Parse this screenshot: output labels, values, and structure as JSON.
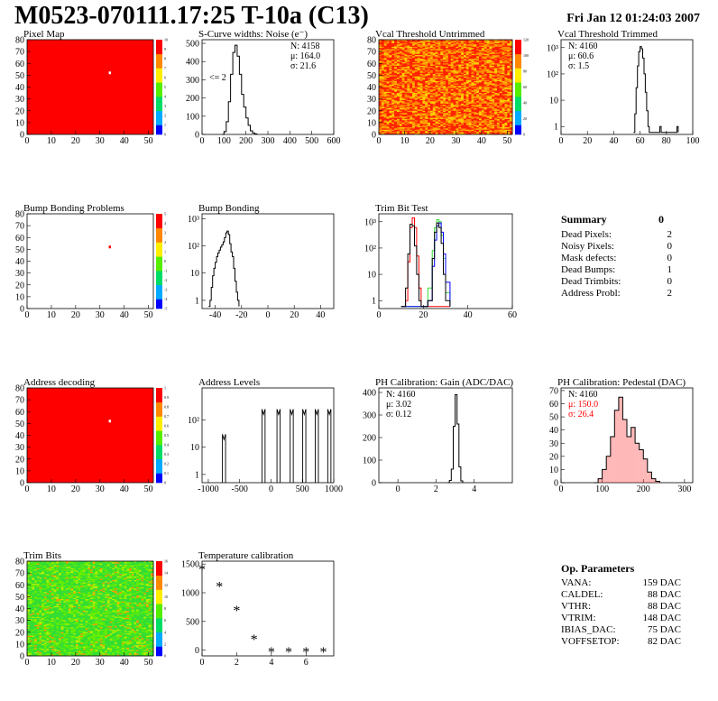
{
  "header": {
    "title": "M0523-070111.17:25 T-10a (C13)",
    "date": "Fri Jan 12 01:24:03 2007"
  },
  "colors": {
    "map_red": "#ff0000",
    "trim_green": "#33dd33",
    "trim_blue": "#0000ff",
    "trim_red": "#ff0000",
    "pedestal_fill": "#ff3333",
    "stats_red": "#ff0000"
  },
  "summary": {
    "title": "Summary",
    "value": "0",
    "rows": [
      {
        "label": "Dead Pixels:",
        "value": "2"
      },
      {
        "label": "Noisy Pixels:",
        "value": "0"
      },
      {
        "label": "Mask defects:",
        "value": "0"
      },
      {
        "label": "Dead Bumps:",
        "value": "1"
      },
      {
        "label": "Dead Trimbits:",
        "value": "0"
      },
      {
        "label": "Address Probl:",
        "value": "2"
      }
    ]
  },
  "op_params": {
    "title": "Op. Parameters",
    "rows": [
      {
        "label": "VANA:",
        "value": "159 DAC"
      },
      {
        "label": "CALDEL:",
        "value": "88 DAC"
      },
      {
        "label": "VTHR:",
        "value": "88 DAC"
      },
      {
        "label": "VTRIM:",
        "value": "148 DAC"
      },
      {
        "label": "IBIAS_DAC:",
        "value": "75 DAC"
      },
      {
        "label": "VOFFSETOP:",
        "value": "82 DAC"
      }
    ]
  },
  "chart_data": [
    {
      "id": "pixel_map",
      "type": "heatmap",
      "title": "Pixel Map",
      "style": "uniform",
      "xlim": [
        0,
        52
      ],
      "ylim": [
        0,
        80
      ],
      "xticks": [
        "0",
        "10",
        "20",
        "30",
        "40",
        "50"
      ],
      "yticks": [
        "0",
        "10",
        "20",
        "30",
        "40",
        "50",
        "60",
        "70",
        "80"
      ],
      "palette_ticks": [
        "0",
        "1",
        "2",
        "3",
        "4",
        "5",
        "6",
        "7",
        "8",
        "9",
        "10"
      ],
      "highlight": [
        34,
        52
      ]
    },
    {
      "id": "scurve",
      "type": "line",
      "title": "S-Curve widths: Noise (e⁻)",
      "xlim": [
        0,
        600
      ],
      "ylim": [
        0,
        520
      ],
      "xticks": [
        "0",
        "100",
        "200",
        "300",
        "400",
        "500",
        "600"
      ],
      "yticks": [
        "0",
        "100",
        "200",
        "300",
        "400",
        "500"
      ],
      "stats": [
        "N: 4158",
        "μ: 164.0",
        "σ: 21.6"
      ],
      "annotation": "<= 2",
      "x": [
        90,
        100,
        110,
        120,
        130,
        140,
        150,
        160,
        170,
        180,
        190,
        200,
        210,
        220,
        230,
        240,
        250
      ],
      "y": [
        0,
        15,
        70,
        180,
        330,
        450,
        490,
        430,
        330,
        220,
        150,
        90,
        50,
        20,
        8,
        3,
        0
      ]
    },
    {
      "id": "vcal_untrimmed",
      "type": "heatmap",
      "title": "Vcal Threshold Untrimmed",
      "style": "noise_hot",
      "xlim": [
        0,
        52
      ],
      "ylim": [
        0,
        80
      ],
      "xticks": [
        "0",
        "10",
        "20",
        "30",
        "40",
        "50"
      ],
      "yticks": [
        "0",
        "10",
        "20",
        "30",
        "40",
        "50",
        "60",
        "70",
        "80"
      ],
      "palette_ticks": [
        "0",
        "20",
        "40",
        "60",
        "80",
        "100",
        "120"
      ]
    },
    {
      "id": "vcal_trimmed",
      "type": "line",
      "title": "Vcal Threshold Trimmed",
      "xlim": [
        0,
        100
      ],
      "ylog": true,
      "ylim": [
        0.5,
        2000
      ],
      "xticks": [
        "0",
        "20",
        "40",
        "60",
        "80",
        "100"
      ],
      "yticks": [
        "1",
        "10",
        "10²",
        "10³"
      ],
      "ytick_vals": [
        1,
        10,
        100,
        1000
      ],
      "stats": [
        "N: 4160",
        "μ: 60.6",
        "σ:  1.5"
      ],
      "x": [
        55,
        56,
        57,
        58,
        59,
        60,
        61,
        62,
        63,
        64,
        65,
        66,
        67,
        75,
        76,
        88,
        89
      ],
      "y": [
        0.6,
        3,
        30,
        200,
        700,
        1100,
        900,
        400,
        100,
        20,
        4,
        1,
        0.6,
        1,
        0.6,
        1,
        0.6
      ]
    },
    {
      "id": "bump_map",
      "type": "heatmap",
      "title": "Bump Bonding Problems",
      "style": "empty",
      "xlim": [
        0,
        52
      ],
      "ylim": [
        0,
        80
      ],
      "xticks": [
        "0",
        "10",
        "20",
        "30",
        "40",
        "50"
      ],
      "yticks": [
        "0",
        "10",
        "20",
        "30",
        "40",
        "50",
        "60",
        "70",
        "80"
      ],
      "palette_ticks": [
        "-5",
        "-4",
        "-3",
        "-2",
        "-1",
        "0",
        "1",
        "2",
        "3",
        "4",
        "5"
      ],
      "highlight": [
        34,
        52
      ]
    },
    {
      "id": "bump_bonding",
      "type": "line",
      "title": "Bump Bonding",
      "xlim": [
        -50,
        50
      ],
      "ylog": true,
      "ylim": [
        0.5,
        1500
      ],
      "xticks": [
        "-40",
        "-20",
        "0",
        "20",
        "40"
      ],
      "yticks": [
        "1",
        "10",
        "10²",
        "10³"
      ],
      "ytick_vals": [
        1,
        10,
        100,
        1000
      ],
      "x": [
        -45,
        -44,
        -43,
        -42,
        -41,
        -40,
        -39,
        -38,
        -37,
        -36,
        -35,
        -34,
        -33,
        -32,
        -31,
        -30,
        -29,
        -28,
        -27,
        -26,
        -25,
        -24,
        -23,
        -22
      ],
      "y": [
        0.6,
        1,
        3,
        8,
        15,
        25,
        40,
        55,
        70,
        90,
        110,
        140,
        200,
        300,
        350,
        260,
        120,
        60,
        40,
        15,
        5,
        2,
        1,
        0.6
      ]
    },
    {
      "id": "trim_bit_test",
      "type": "line",
      "title": "Trim Bit Test",
      "xlim": [
        0,
        60
      ],
      "ylog": true,
      "ylim": [
        0.5,
        2000
      ],
      "xticks": [
        "0",
        "20",
        "40",
        "60"
      ],
      "yticks": [
        "1",
        "10",
        "10²",
        "10³"
      ],
      "ytick_vals": [
        1,
        10,
        100,
        1000
      ],
      "x": [
        10,
        12,
        13,
        14,
        15,
        16,
        17,
        18,
        19,
        20,
        22,
        24,
        25,
        26,
        27,
        28,
        29,
        30,
        32
      ],
      "series": [
        {
          "color": "#ff0000",
          "y": [
            0.6,
            1,
            30,
            600,
            1400,
            600,
            50,
            3,
            0.6,
            0.6,
            0.6,
            0.6,
            0.6,
            0.6,
            0.6,
            0.6,
            0.6,
            0.6,
            0.6
          ]
        },
        {
          "color": "#33dd33",
          "y": [
            0.6,
            0.6,
            0.6,
            0.6,
            0.6,
            0.6,
            0.6,
            0.6,
            0.6,
            0.6,
            3,
            80,
            600,
            1200,
            1000,
            300,
            40,
            2,
            0.6
          ]
        },
        {
          "color": "#0000ff",
          "y": [
            0.6,
            0.6,
            0.6,
            0.6,
            0.6,
            0.6,
            0.6,
            0.6,
            0.6,
            0.6,
            1,
            20,
            200,
            700,
            900,
            400,
            60,
            5,
            0.6
          ]
        },
        {
          "color": "#000000",
          "y": [
            0.6,
            3,
            60,
            800,
            700,
            120,
            10,
            1,
            0.6,
            0.6,
            1,
            40,
            400,
            900,
            600,
            150,
            10,
            1,
            0.6
          ]
        }
      ]
    },
    {
      "id": "address_decoding",
      "type": "heatmap",
      "title": "Address decoding",
      "style": "uniform",
      "xlim": [
        0,
        52
      ],
      "ylim": [
        0,
        80
      ],
      "xticks": [
        "0",
        "10",
        "20",
        "30",
        "40",
        "50"
      ],
      "yticks": [
        "0",
        "10",
        "20",
        "30",
        "40",
        "50",
        "60",
        "70",
        "80"
      ],
      "palette_ticks": [
        "0",
        "0.1",
        "0.2",
        "0.3",
        "0.4",
        "0.5",
        "0.6",
        "0.7",
        "0.8",
        "0.9",
        "1"
      ],
      "highlight": [
        34,
        52
      ]
    },
    {
      "id": "address_levels",
      "type": "line",
      "title": "Address Levels",
      "xlim": [
        -1100,
        1000
      ],
      "ylog": true,
      "ylim": [
        0.5,
        1500
      ],
      "xticks": [
        "-1000",
        "-500",
        "0",
        "500",
        "1000"
      ],
      "yticks": [
        "1",
        "10",
        "10²"
      ],
      "ytick_vals": [
        1,
        10,
        100
      ],
      "peaks": [
        -750,
        -120,
        120,
        330,
        530,
        730,
        930
      ],
      "peak_heights": [
        30,
        250,
        250,
        250,
        250,
        250,
        250
      ]
    },
    {
      "id": "ph_gain",
      "type": "line",
      "title": "PH Calibration: Gain (ADC/DAC)",
      "xlim": [
        -1,
        6
      ],
      "ylim": [
        0,
        420
      ],
      "xticks": [
        "0",
        "2",
        "4"
      ],
      "yticks": [
        "0",
        "100",
        "200",
        "300",
        "400"
      ],
      "stats": [
        "N: 4160",
        "μ: 3.02",
        "σ: 0.12"
      ],
      "x": [
        2.6,
        2.7,
        2.8,
        2.9,
        3.0,
        3.1,
        3.2,
        3.3,
        3.4
      ],
      "y": [
        0,
        10,
        60,
        250,
        390,
        260,
        70,
        8,
        0
      ]
    },
    {
      "id": "ph_pedestal",
      "type": "line",
      "title": "PH Calibration: Pedestal (DAC)",
      "xlim": [
        0,
        320
      ],
      "ylim": [
        0,
        72
      ],
      "xticks": [
        "0",
        "100",
        "200",
        "300"
      ],
      "yticks": [
        "0",
        "10",
        "20",
        "30",
        "40",
        "50",
        "60",
        "70"
      ],
      "stats": [
        "N: 4160",
        "μ: 150.0",
        "σ: 26.4"
      ],
      "stats_red_from": 1,
      "x": [
        80,
        90,
        100,
        110,
        120,
        130,
        140,
        150,
        160,
        170,
        180,
        190,
        200,
        210,
        220,
        230,
        240
      ],
      "y": [
        0,
        3,
        10,
        20,
        35,
        55,
        65,
        48,
        35,
        42,
        30,
        25,
        18,
        8,
        3,
        1,
        0
      ]
    },
    {
      "id": "trim_bits",
      "type": "heatmap",
      "title": "Trim Bits",
      "style": "noise_green",
      "xlim": [
        0,
        52
      ],
      "ylim": [
        0,
        80
      ],
      "xticks": [
        "0",
        "10",
        "20",
        "30",
        "40",
        "50"
      ],
      "yticks": [
        "0",
        "10",
        "20",
        "30",
        "40",
        "50",
        "60",
        "70",
        "80"
      ],
      "palette_ticks": [
        "0",
        "2",
        "4",
        "6",
        "8",
        "10",
        "12",
        "14",
        "16"
      ]
    },
    {
      "id": "temperature",
      "type": "scatter",
      "title": "Temperature calibration",
      "xlim": [
        0,
        7.6
      ],
      "ylim": [
        -100,
        1550
      ],
      "xticks": [
        "0",
        "2",
        "4",
        "6"
      ],
      "yticks": [
        "0",
        "500",
        "1000",
        "1500"
      ],
      "x": [
        0,
        1,
        2,
        3,
        4,
        5,
        6,
        7
      ],
      "y": [
        1420,
        1120,
        700,
        200,
        -20,
        -20,
        -20,
        -20
      ]
    }
  ]
}
